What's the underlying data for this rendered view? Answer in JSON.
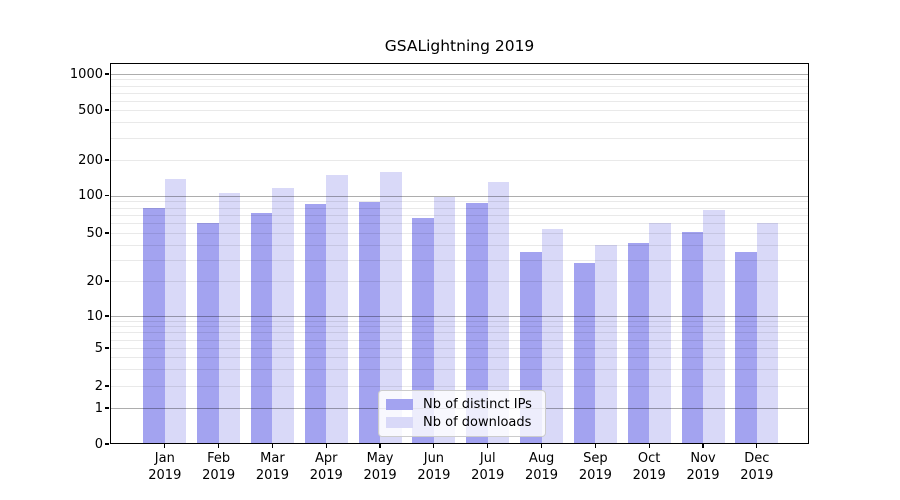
{
  "chart_data": {
    "type": "bar",
    "title": "GSALightning 2019",
    "categories": [
      "Jan",
      "Feb",
      "Mar",
      "Apr",
      "May",
      "Jun",
      "Jul",
      "Aug",
      "Sep",
      "Oct",
      "Nov",
      "Dec"
    ],
    "category_year": "2019",
    "series": [
      {
        "name": "Nb of distinct IPs",
        "color": "#a3a3f0",
        "values": [
          80,
          60,
          73,
          85,
          88,
          66,
          87,
          35,
          28,
          41,
          51,
          35
        ]
      },
      {
        "name": "Nb of downloads",
        "color": "#d9d9f8",
        "values": [
          137,
          104,
          116,
          148,
          158,
          98,
          130,
          54,
          40,
          60,
          77,
          60
        ]
      }
    ],
    "y_ticks": [
      0,
      1,
      2,
      5,
      10,
      20,
      50,
      100,
      200,
      500,
      1000
    ],
    "y_scale": "symlog",
    "ylim": [
      0,
      1200
    ],
    "xlabel": "",
    "ylabel": "",
    "grid": true,
    "legend_position": "lower center"
  },
  "colors": {
    "background": "#ffffff",
    "spine": "#000000",
    "major_grid": "#b3b3b3",
    "minor_grid": "#ebebeb",
    "legend_border": "#cccccc"
  }
}
